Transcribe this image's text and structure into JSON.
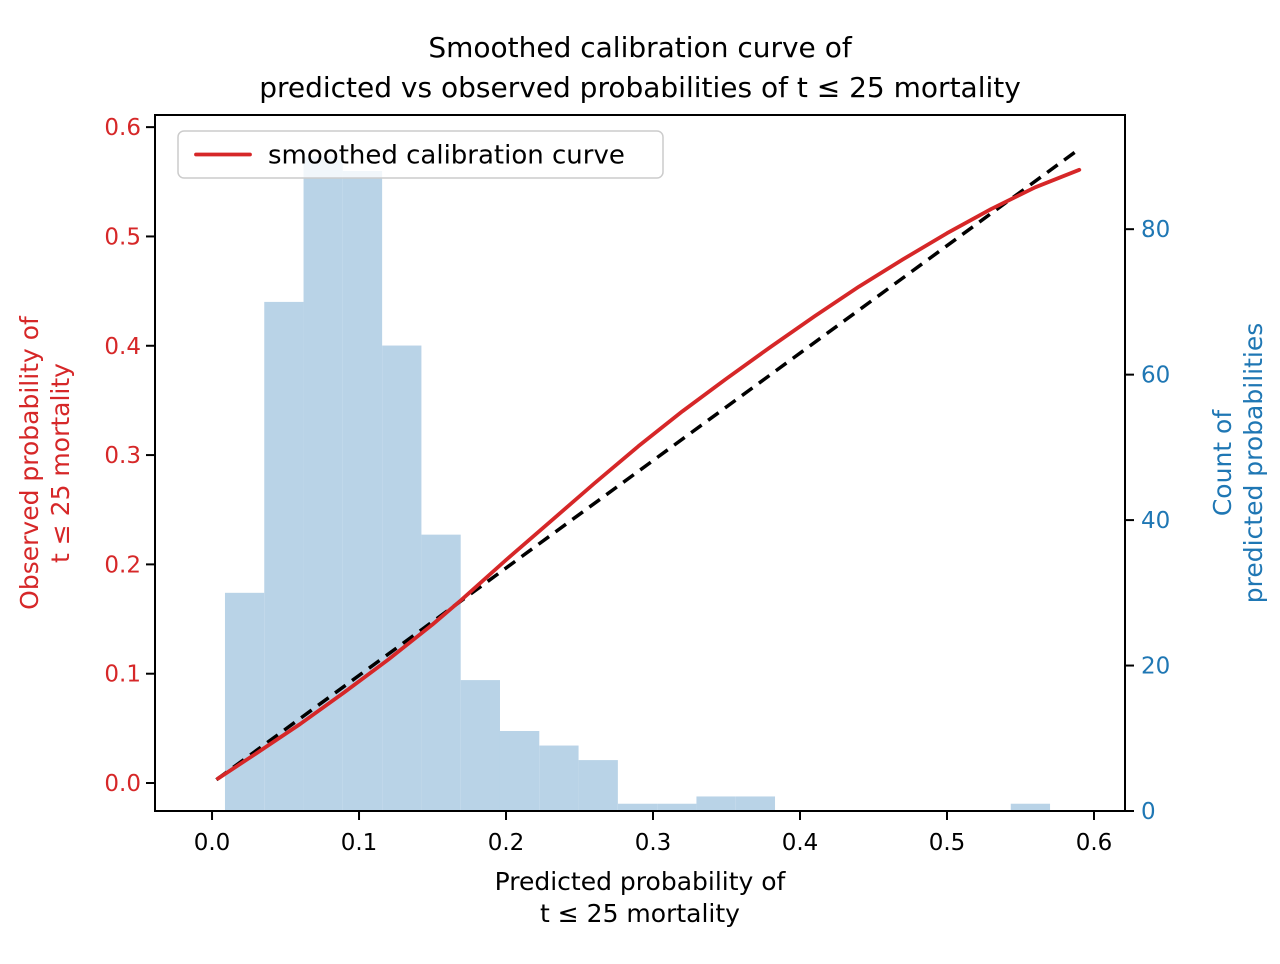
{
  "title": {
    "line1": "Smoothed calibration curve of",
    "line2": "predicted vs observed probabilities of t ≤ 25 mortality"
  },
  "axes": {
    "x": {
      "label_line1": "Predicted probability of",
      "label_line2": "t ≤ 25 mortality",
      "tick_labels": [
        "0.0",
        "0.1",
        "0.2",
        "0.3",
        "0.4",
        "0.5",
        "0.6"
      ],
      "tick_values": [
        0,
        0.1,
        0.2,
        0.3,
        0.4,
        0.5,
        0.6
      ],
      "color": "#000000"
    },
    "y_left": {
      "label_line1": "Observed probability of",
      "label_line2": "t ≤ 25 mortality",
      "tick_labels": [
        "0.0",
        "0.1",
        "0.2",
        "0.3",
        "0.4",
        "0.5",
        "0.6"
      ],
      "tick_values": [
        0,
        0.1,
        0.2,
        0.3,
        0.4,
        0.5,
        0.6
      ],
      "color": "#d62728"
    },
    "y_right": {
      "label_line1": "Count of",
      "label_line2": "predicted probabilities",
      "tick_labels": [
        "0",
        "20",
        "40",
        "60",
        "80"
      ],
      "tick_values": [
        0,
        20,
        40,
        60,
        80
      ],
      "color": "#1f77b4"
    }
  },
  "legend": {
    "entries": [
      {
        "label": "smoothed calibration curve",
        "color": "#d62728"
      }
    ]
  },
  "colors": {
    "curve_red": "#d62728",
    "count_blue": "#1f77b4",
    "hist_fill": "#b9d3e7",
    "dashed_black": "#000000",
    "legend_border": "#cccccc",
    "spine_black": "#000000"
  },
  "chart_data": {
    "type": "line",
    "title": "Smoothed calibration curve of predicted vs observed probabilities of t ≤ 25 mortality",
    "xlabel": "Predicted probability of t ≤ 25 mortality",
    "ylabel_left": "Observed probability of t ≤ 25 mortality",
    "ylabel_right": "Count of predicted probabilities",
    "xlim": [
      -0.0388,
      0.6211
    ],
    "ylim_left": [
      -0.0256,
      0.6111
    ],
    "ylim_right": [
      0,
      95.7
    ],
    "grid": false,
    "legend_position": "upper left",
    "series": [
      {
        "name": "smoothed calibration curve",
        "type": "line",
        "style": "solid",
        "color": "#d62728",
        "axis": "left",
        "x": [
          0.004,
          0.03,
          0.06,
          0.09,
          0.12,
          0.15,
          0.17,
          0.2,
          0.23,
          0.26,
          0.29,
          0.32,
          0.35,
          0.38,
          0.41,
          0.44,
          0.47,
          0.5,
          0.53,
          0.56,
          0.59
        ],
        "y": [
          0.004,
          0.027,
          0.054,
          0.083,
          0.113,
          0.145,
          0.168,
          0.204,
          0.239,
          0.274,
          0.308,
          0.34,
          0.37,
          0.399,
          0.427,
          0.454,
          0.479,
          0.503,
          0.525,
          0.545,
          0.561
        ]
      },
      {
        "name": "perfect calibration reference",
        "type": "line",
        "style": "dashed",
        "color": "#000000",
        "axis": "left",
        "x": [
          0.003,
          0.591
        ],
        "y": [
          0.003,
          0.581
        ]
      }
    ],
    "histogram": {
      "name": "count of predicted probabilities",
      "axis": "right",
      "color": "#b9d3e7",
      "bin_start": 0.0088,
      "bin_width": 0.026729,
      "counts": [
        30,
        70,
        90,
        88,
        64,
        38,
        18,
        11,
        9,
        7,
        1,
        1,
        2,
        2,
        0,
        0,
        0,
        0,
        0,
        0,
        1
      ]
    }
  }
}
